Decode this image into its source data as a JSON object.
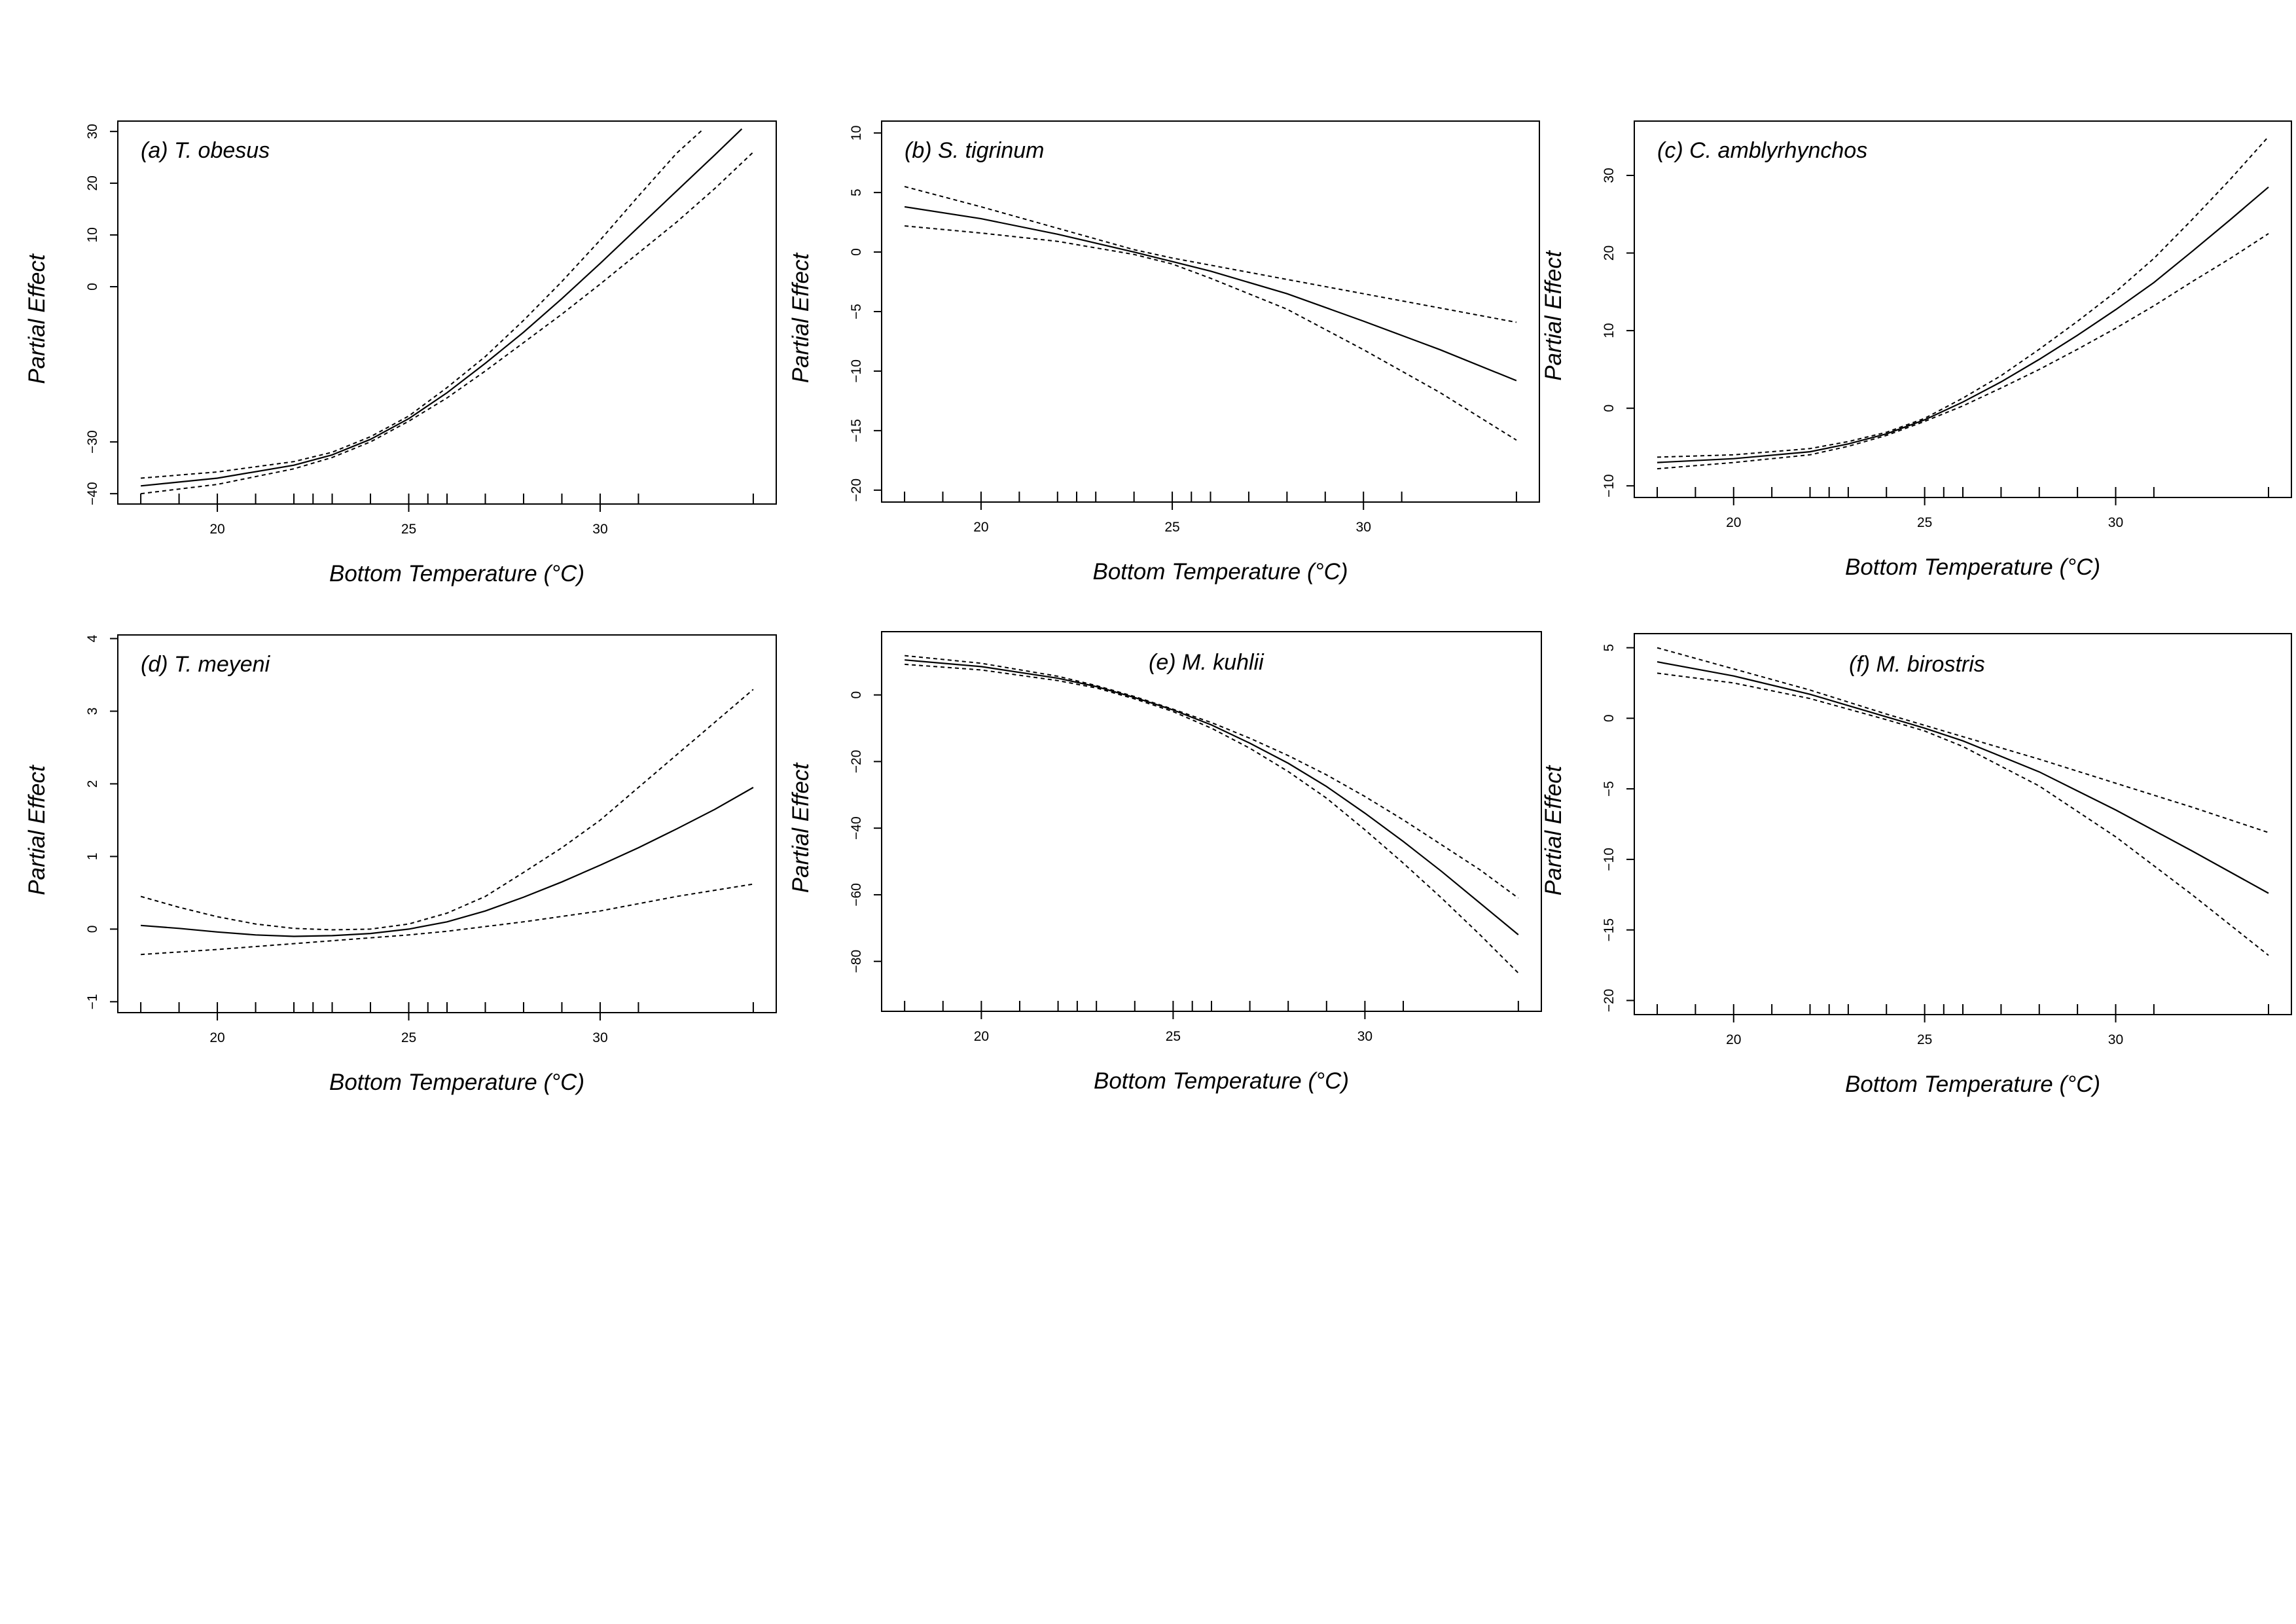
{
  "figure": {
    "xlabel_common": "Bottom Temperature (°C)",
    "ylabel_common": "Partial Effect"
  },
  "chart_data": [
    {
      "type": "line",
      "panel_label": "(a) T. obesus",
      "xlabel": "Bottom Temperature (°C)",
      "ylabel": "Partial Effect",
      "xlim": [
        17.4,
        34.6
      ],
      "ylim": [
        -42,
        32
      ],
      "x_ticks": [
        20,
        25,
        30
      ],
      "y_ticks": [
        -40,
        -30,
        0,
        10,
        20,
        30
      ],
      "y_tick_labels": [
        "−40",
        "−30",
        "0",
        "10",
        "20",
        "30"
      ],
      "label_placement": "top-left",
      "rug": [
        18,
        19,
        20,
        21,
        22,
        22.5,
        23,
        24,
        25,
        25.5,
        26,
        27,
        28,
        29,
        30,
        31,
        34
      ],
      "series": [
        {
          "role": "fit",
          "style": "solid",
          "x": [
            18,
            20,
            22,
            23,
            24,
            25,
            26,
            27,
            28,
            29,
            30,
            31,
            32,
            33,
            33.7
          ],
          "y": [
            -38.5,
            -37,
            -34.5,
            -32.5,
            -29.5,
            -25.5,
            -20.5,
            -14.8,
            -8.8,
            -2.3,
            4.5,
            11.5,
            18.5,
            25.5,
            30.5
          ]
        },
        {
          "role": "upper",
          "style": "dashed",
          "x": [
            18,
            20,
            22,
            23,
            24,
            25,
            26,
            27,
            28,
            29,
            30,
            31,
            32,
            32.7
          ],
          "y": [
            -37,
            -35.8,
            -33.8,
            -32,
            -29,
            -25,
            -19.5,
            -13.5,
            -6.5,
            1,
            9,
            17.5,
            25.8,
            30.5
          ]
        },
        {
          "role": "lower",
          "style": "dashed",
          "x": [
            18,
            20,
            22,
            23,
            24,
            25,
            26,
            27,
            28,
            29,
            30,
            31,
            32,
            33,
            34
          ],
          "y": [
            -40,
            -38.2,
            -35.2,
            -33,
            -30,
            -26,
            -21.5,
            -16.3,
            -10.8,
            -5.3,
            0.5,
            6.5,
            12.5,
            19,
            26
          ]
        }
      ]
    },
    {
      "type": "line",
      "panel_label": "(b) S. tigrinum",
      "xlabel": "Bottom Temperature (°C)",
      "ylabel": "Partial Effect",
      "xlim": [
        17.4,
        34.6
      ],
      "ylim": [
        -21,
        11
      ],
      "x_ticks": [
        20,
        25,
        30
      ],
      "y_ticks": [
        -20,
        -15,
        -10,
        -5,
        0,
        5,
        10
      ],
      "y_tick_labels": [
        "−20",
        "−15",
        "−10",
        "−5",
        "0",
        "5",
        "10"
      ],
      "label_placement": "top-left",
      "rug": [
        18,
        19,
        20,
        21,
        22,
        22.5,
        23,
        24,
        25,
        25.5,
        26,
        27,
        28,
        29,
        30,
        31,
        34
      ],
      "series": [
        {
          "role": "fit",
          "style": "solid",
          "x": [
            18,
            20,
            22,
            24,
            25,
            26,
            28,
            30,
            32,
            34
          ],
          "y": [
            3.8,
            2.8,
            1.5,
            0,
            -0.8,
            -1.6,
            -3.5,
            -5.8,
            -8.2,
            -10.8
          ]
        },
        {
          "role": "upper",
          "style": "dashed",
          "x": [
            18,
            20,
            22,
            24,
            25,
            26,
            28,
            30,
            32,
            34
          ],
          "y": [
            5.5,
            3.8,
            2,
            0.2,
            -0.5,
            -1.1,
            -2.3,
            -3.5,
            -4.7,
            -5.9
          ]
        },
        {
          "role": "lower",
          "style": "dashed",
          "x": [
            18,
            20,
            22,
            24,
            25,
            26,
            28,
            30,
            32,
            34
          ],
          "y": [
            2.2,
            1.6,
            0.9,
            -0.2,
            -1,
            -2.2,
            -4.8,
            -8.2,
            -11.8,
            -15.8
          ]
        }
      ]
    },
    {
      "type": "line",
      "panel_label": "(c) C. amblyrhynchos",
      "xlabel": "Bottom Temperature (°C)",
      "ylabel": "Partial Effect",
      "xlim": [
        17.4,
        34.6
      ],
      "ylim": [
        -11.5,
        37
      ],
      "x_ticks": [
        20,
        25,
        30
      ],
      "y_ticks": [
        -10,
        0,
        10,
        20,
        30
      ],
      "y_tick_labels": [
        "−10",
        "0",
        "10",
        "20",
        "30"
      ],
      "label_placement": "top-left",
      "rug": [
        18,
        19,
        20,
        21,
        22,
        22.5,
        23,
        24,
        25,
        25.5,
        26,
        27,
        28,
        29,
        30,
        31,
        34
      ],
      "series": [
        {
          "role": "fit",
          "style": "solid",
          "x": [
            18,
            20,
            22,
            23,
            24,
            25,
            26,
            27,
            28,
            29,
            30,
            31,
            32,
            33,
            34
          ],
          "y": [
            -7,
            -6.5,
            -5.6,
            -4.6,
            -3.3,
            -1.5,
            0.8,
            3.4,
            6.3,
            9.4,
            12.7,
            16.2,
            20.2,
            24.3,
            28.5
          ]
        },
        {
          "role": "upper",
          "style": "dashed",
          "x": [
            18,
            20,
            22,
            23,
            24,
            25,
            26,
            27,
            28,
            29,
            30,
            31,
            32,
            33,
            34
          ],
          "y": [
            -6.3,
            -6,
            -5.2,
            -4.3,
            -3.1,
            -1.3,
            1.3,
            4.2,
            7.6,
            11.2,
            15,
            19.3,
            24.3,
            29.5,
            35
          ]
        },
        {
          "role": "lower",
          "style": "dashed",
          "x": [
            18,
            20,
            22,
            23,
            24,
            25,
            26,
            27,
            28,
            29,
            30,
            31,
            32,
            33,
            34
          ],
          "y": [
            -7.8,
            -7,
            -6,
            -4.9,
            -3.5,
            -1.7,
            0.3,
            2.6,
            5,
            7.6,
            10.3,
            13.2,
            16.3,
            19.3,
            22.5
          ]
        }
      ]
    },
    {
      "type": "line",
      "panel_label": "(d) T. meyeni",
      "xlabel": "Bottom Temperature (°C)",
      "ylabel": "Partial Effect",
      "xlim": [
        17.4,
        34.6
      ],
      "ylim": [
        -1.15,
        4.05
      ],
      "x_ticks": [
        20,
        25,
        30
      ],
      "y_ticks": [
        -1,
        0,
        1,
        2,
        3,
        4
      ],
      "y_tick_labels": [
        "−1",
        "0",
        "1",
        "2",
        "3",
        "4"
      ],
      "label_placement": "top-left",
      "rug": [
        18,
        19,
        20,
        21,
        22,
        22.5,
        23,
        24,
        25,
        25.5,
        26,
        27,
        28,
        29,
        30,
        31,
        34
      ],
      "series": [
        {
          "role": "fit",
          "style": "solid",
          "x": [
            18,
            19,
            20,
            21,
            22,
            23,
            24,
            25,
            26,
            27,
            28,
            29,
            30,
            31,
            32,
            33,
            34
          ],
          "y": [
            0.05,
            0.01,
            -0.04,
            -0.08,
            -0.1,
            -0.09,
            -0.06,
            0,
            0.1,
            0.25,
            0.44,
            0.65,
            0.88,
            1.12,
            1.38,
            1.65,
            1.95
          ]
        },
        {
          "role": "upper",
          "style": "dashed",
          "x": [
            18,
            19,
            20,
            21,
            22,
            23,
            24,
            25,
            26,
            27,
            28,
            29,
            30,
            31,
            32,
            33,
            34
          ],
          "y": [
            0.45,
            0.3,
            0.17,
            0.07,
            0.01,
            -0.01,
            0,
            0.07,
            0.22,
            0.45,
            0.78,
            1.12,
            1.5,
            1.95,
            2.4,
            2.85,
            3.3
          ]
        },
        {
          "role": "lower",
          "style": "dashed",
          "x": [
            18,
            20,
            22,
            24,
            25,
            26,
            28,
            30,
            32,
            34
          ],
          "y": [
            -0.35,
            -0.28,
            -0.2,
            -0.12,
            -0.08,
            -0.03,
            0.1,
            0.25,
            0.45,
            0.62
          ]
        }
      ]
    },
    {
      "type": "line",
      "panel_label": "(e) M. kuhlii",
      "xlabel": "Bottom Temperature (°C)",
      "ylabel": "Partial Effect",
      "xlim": [
        17.4,
        34.6
      ],
      "ylim": [
        -95,
        19
      ],
      "x_ticks": [
        20,
        25,
        30
      ],
      "y_ticks": [
        -80,
        -60,
        -40,
        -20,
        0
      ],
      "y_tick_labels": [
        "−80",
        "−60",
        "−40",
        "−20",
        "0"
      ],
      "label_placement": "top-right",
      "rug": [
        18,
        19,
        20,
        21,
        22,
        22.5,
        23,
        24,
        25,
        25.5,
        26,
        27,
        28,
        29,
        30,
        31,
        34
      ],
      "series": [
        {
          "role": "fit",
          "style": "solid",
          "x": [
            18,
            20,
            22,
            23,
            24,
            25,
            26,
            27,
            28,
            29,
            30,
            31,
            32,
            33,
            34
          ],
          "y": [
            10.5,
            8.5,
            5,
            2.5,
            -0.8,
            -4.5,
            -9,
            -14.5,
            -20.5,
            -27.5,
            -35.5,
            -44,
            -53,
            -62.5,
            -72
          ]
        },
        {
          "role": "upper",
          "style": "dashed",
          "x": [
            18,
            20,
            22,
            23,
            24,
            25,
            26,
            27,
            28,
            29,
            30,
            31,
            32,
            33,
            34
          ],
          "y": [
            11.8,
            9.5,
            5.6,
            2.8,
            -0.5,
            -4.3,
            -8.3,
            -13,
            -18.2,
            -24,
            -30.5,
            -37.5,
            -45,
            -52.5,
            -61
          ]
        },
        {
          "role": "lower",
          "style": "dashed",
          "x": [
            18,
            20,
            22,
            23,
            24,
            25,
            26,
            27,
            28,
            29,
            30,
            31,
            32,
            33,
            34
          ],
          "y": [
            9.2,
            7.5,
            4.3,
            2.1,
            -1.2,
            -5,
            -10,
            -16,
            -23,
            -31,
            -40.5,
            -50.5,
            -61,
            -72,
            -83.5
          ]
        }
      ]
    },
    {
      "type": "line",
      "panel_label": "(f) M. birostris",
      "xlabel": "Bottom Temperature (°C)",
      "ylabel": "Partial Effect",
      "xlim": [
        17.4,
        34.6
      ],
      "ylim": [
        -21,
        6
      ],
      "x_ticks": [
        20,
        25,
        30
      ],
      "y_ticks": [
        -20,
        -15,
        -10,
        -5,
        0,
        5
      ],
      "y_tick_labels": [
        "−20",
        "−15",
        "−10",
        "−5",
        "0",
        "5"
      ],
      "label_placement": "top-center",
      "rug": [
        18,
        19,
        20,
        21,
        22,
        22.5,
        23,
        24,
        25,
        25.5,
        26,
        27,
        28,
        29,
        30,
        31,
        34
      ],
      "series": [
        {
          "role": "fit",
          "style": "solid",
          "x": [
            18,
            20,
            22,
            24,
            25,
            26,
            28,
            30,
            32,
            34
          ],
          "y": [
            4,
            3,
            1.7,
            0.1,
            -0.7,
            -1.6,
            -3.8,
            -6.5,
            -9.4,
            -12.4
          ]
        },
        {
          "role": "upper",
          "style": "dashed",
          "x": [
            18,
            20,
            22,
            24,
            25,
            26,
            28,
            30,
            32,
            34
          ],
          "y": [
            5,
            3.5,
            2,
            0.3,
            -0.5,
            -1.3,
            -2.9,
            -4.6,
            -6.3,
            -8.1
          ]
        },
        {
          "role": "lower",
          "style": "dashed",
          "x": [
            18,
            20,
            22,
            24,
            25,
            26,
            28,
            30,
            32,
            34
          ],
          "y": [
            3.2,
            2.5,
            1.4,
            -0.1,
            -0.9,
            -2,
            -4.8,
            -8.4,
            -12.5,
            -16.8
          ]
        }
      ]
    }
  ]
}
